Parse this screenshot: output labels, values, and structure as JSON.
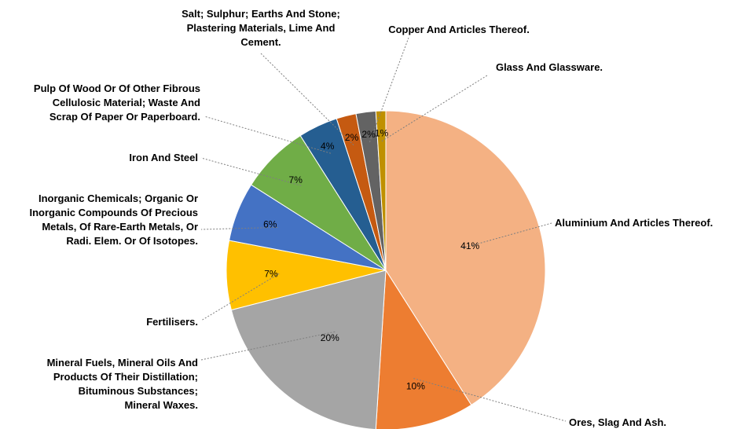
{
  "chart_data": {
    "type": "pie",
    "title": "",
    "legend": "none",
    "slices": [
      {
        "label": "Aluminium And Articles Thereof.",
        "value": 41,
        "value_label": "41%",
        "color": "#F4B183"
      },
      {
        "label": "Ores, Slag And Ash.",
        "value": 10,
        "value_label": "10%",
        "color": "#ED7D31"
      },
      {
        "label": "Mineral Fuels, Mineral Oils And Products Of Their Distillation; Bituminous Substances; Mineral Waxes.",
        "value": 20,
        "value_label": "20%",
        "color": "#A5A5A5"
      },
      {
        "label": "Fertilisers.",
        "value": 7,
        "value_label": "7%",
        "color": "#FFC000"
      },
      {
        "label": "Inorganic Chemicals; Organic Or Inorganic Compounds Of Precious Metals, Of Rare-Earth Metals, Or Radi. Elem. Or Of Isotopes.",
        "value": 6,
        "value_label": "6%",
        "color": "#4472C4"
      },
      {
        "label": "Iron And Steel",
        "value": 7,
        "value_label": "7%",
        "color": "#70AD47"
      },
      {
        "label": "Pulp Of Wood Or Of Other Fibrous Cellulosic Material; Waste And Scrap Of Paper Or Paperboard.",
        "value": 4,
        "value_label": "4%",
        "color": "#255E91"
      },
      {
        "label": "Salt; Sulphur; Earths And Stone; Plastering Materials, Lime And Cement.",
        "value": 2,
        "value_label": "2%",
        "color": "#C55A11"
      },
      {
        "label": "Copper And Articles Thereof.",
        "value": 2,
        "value_label": "2%",
        "color": "#636363"
      },
      {
        "label": "Glass And Glassware.",
        "value": 1,
        "value_label": "1%",
        "color": "#BF9000"
      }
    ]
  }
}
